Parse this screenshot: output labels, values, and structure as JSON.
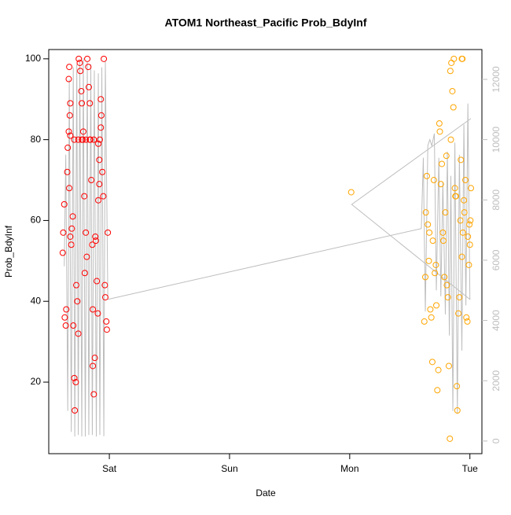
{
  "chart_data": {
    "type": "scatter",
    "title": "ATOM1 Northeast_Pacific Prob_BdyInf",
    "x_label": "Date",
    "y_label": "Prob_BdyInf",
    "xlim": [
      -12.1,
      74.4
    ],
    "xticks": [
      {
        "value": 0,
        "label": "Sat"
      },
      {
        "value": 24,
        "label": "Sun"
      },
      {
        "value": 48,
        "label": "Mon"
      },
      {
        "value": 72,
        "label": "Tue"
      }
    ],
    "ylim": [
      2.3,
      102.3
    ],
    "yticks": [
      20,
      40,
      60,
      80,
      100
    ],
    "y2lim": [
      -420,
      12990
    ],
    "y2ticks": [
      0,
      2000,
      4000,
      6000,
      8000,
      10000,
      12000
    ],
    "y2_color": "#bebebe",
    "series": [
      {
        "color": "#ff0000",
        "style": "points",
        "x": [
          -9.2,
          -9.3,
          -9.0,
          -8.9,
          -8.7,
          -8.6,
          -8.4,
          -8.3,
          -8.1,
          -8.0,
          -8.1,
          -7.9,
          -7.8,
          -8.0,
          -7.8,
          -7.6,
          -7.5,
          -7.3,
          -7.2,
          -7.0,
          -6.9,
          -6.7,
          -6.6,
          -6.4,
          -6.2,
          -6.1,
          -5.9,
          -5.8,
          -5.6,
          -5.5,
          -5.3,
          -5.2,
          -5.0,
          -4.9,
          -4.7,
          -4.5,
          -4.4,
          -4.2,
          -4.1,
          -3.9,
          -3.8,
          -3.6,
          -3.4,
          -3.3,
          -3.3,
          -3.1,
          -2.9,
          -2.8,
          -2.7,
          -2.5,
          -2.3,
          -2.2,
          -2.0,
          -1.9,
          -1.7,
          -1.6,
          -1.4,
          -1.2,
          -1.1,
          -0.9,
          -0.8,
          -0.6,
          -0.5,
          -0.3,
          -1.7,
          -2.0,
          -2.2,
          -7.8,
          -7.0,
          -6.2,
          -5.5,
          -4.7,
          -3.9,
          -3.1
        ],
        "values": [
          57,
          52,
          64,
          36,
          34,
          38,
          72,
          78,
          95,
          98,
          82,
          86,
          89,
          68,
          56,
          54,
          58,
          61,
          34,
          21,
          13,
          20,
          44,
          40,
          32,
          100,
          99,
          97,
          92,
          89,
          80,
          82,
          66,
          47,
          57,
          51,
          100,
          98,
          93,
          89,
          80,
          70,
          54,
          38,
          24,
          17,
          26,
          56,
          55,
          45,
          37,
          65,
          75,
          80,
          83,
          86,
          72,
          66,
          100,
          44,
          41,
          35,
          33,
          57,
          90,
          69,
          79,
          81,
          80,
          80,
          80,
          80,
          80,
          80
        ]
      },
      {
        "color": "#ffa500",
        "style": "points",
        "x": [
          48.3,
          62.9,
          63.1,
          63.2,
          63.4,
          63.6,
          63.8,
          63.9,
          64.1,
          64.3,
          64.5,
          64.6,
          64.8,
          65.0,
          65.2,
          65.3,
          65.5,
          65.7,
          65.9,
          66.0,
          66.2,
          66.4,
          66.6,
          66.7,
          66.9,
          67.1,
          67.3,
          67.4,
          67.6,
          67.8,
          68.0,
          68.1,
          68.3,
          68.5,
          68.7,
          68.8,
          69.0,
          69.2,
          69.4,
          69.5,
          69.7,
          69.9,
          70.1,
          70.2,
          70.4,
          70.6,
          70.8,
          70.9,
          71.1,
          71.3,
          71.5,
          71.6,
          71.8,
          72.0,
          72.2,
          72.1,
          71.9,
          70.4,
          70.5,
          69.1,
          68.2
        ],
        "values": [
          67,
          35,
          46,
          62,
          71,
          59,
          50,
          57,
          38,
          36,
          25,
          55,
          70,
          47,
          49,
          39,
          18,
          23,
          84,
          82,
          69,
          74,
          57,
          55,
          46,
          62,
          76,
          44,
          41,
          24,
          6,
          97,
          99,
          92,
          88,
          100,
          68,
          66,
          19,
          13,
          37,
          41,
          60,
          75,
          51,
          57,
          65,
          62,
          70,
          36,
          35,
          56,
          49,
          54,
          68,
          60,
          59,
          100,
          100,
          66,
          80
        ]
      },
      {
        "color": "#bebebe",
        "style": "line",
        "axis": "y2",
        "x": [
          -9.0,
          -8.7,
          -8.3,
          -8.0,
          -7.6,
          -7.2,
          -6.9,
          -6.5,
          -6.2,
          -5.9,
          -5.5,
          -5.2,
          -4.8,
          -4.4,
          -4.1,
          -3.7,
          -3.4,
          -3.0,
          -2.6,
          -2.2,
          -1.9,
          -1.5,
          -1.1,
          -0.8,
          -0.3,
          62.3,
          62.7,
          63.1,
          63.6,
          64.0,
          64.4,
          64.9,
          65.3,
          65.8,
          66.2,
          66.6,
          67.1,
          67.5,
          67.9,
          68.2,
          68.6,
          69.0,
          69.5,
          69.9,
          70.4,
          70.8,
          71.2,
          71.6,
          72.0,
          48.4,
          72.2
        ],
        "values": [
          5800,
          9500,
          1000,
          12000,
          300,
          12400,
          150,
          12500,
          200,
          12600,
          150,
          12700,
          150,
          12600,
          200,
          12500,
          200,
          12300,
          150,
          12200,
          200,
          12400,
          160,
          12600,
          4700,
          7050,
          9400,
          4300,
          9800,
          10000,
          9800,
          10200,
          5000,
          9400,
          4800,
          8600,
          4200,
          9600,
          3500,
          8800,
          1000,
          9900,
          900,
          9500,
          3000,
          10500,
          4500,
          11200,
          4700,
          7850,
          10700
        ]
      }
    ]
  }
}
